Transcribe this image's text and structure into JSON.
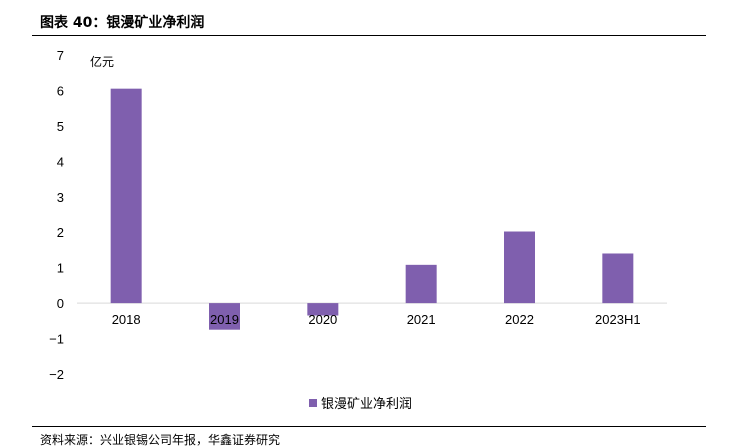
{
  "figure_title": "图表 40：银漫矿业净利润",
  "source_text": "资料来源：兴业银锡公司年报，华鑫证券研究",
  "chart_data": {
    "type": "bar",
    "categories": [
      "2018",
      "2019",
      "2020",
      "2021",
      "2022",
      "2023H1"
    ],
    "series": [
      {
        "name": "银漫矿业净利润",
        "values": [
          6.05,
          -0.75,
          -0.35,
          1.08,
          2.02,
          1.4
        ]
      }
    ],
    "unit_label": "亿元",
    "y_ticks": [
      7,
      6,
      5,
      4,
      3,
      2,
      1,
      0,
      -1,
      -2
    ],
    "ylim": [
      -2,
      7
    ],
    "grid": false,
    "legend_position": "bottom-center",
    "bar_color": "#7f5fae",
    "axis_color": "#d9d9d9"
  }
}
